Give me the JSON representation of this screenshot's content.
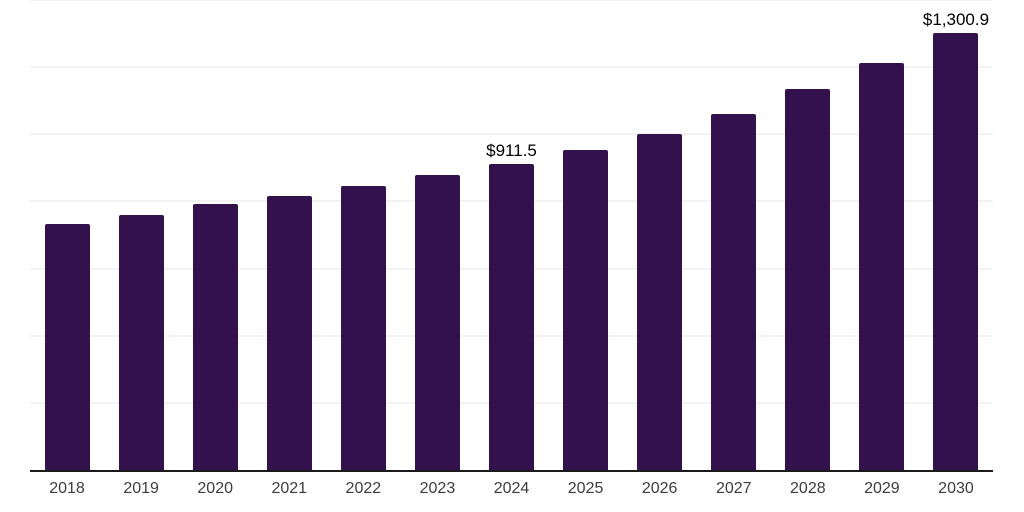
{
  "chart_data": {
    "type": "bar",
    "title": "",
    "xlabel": "",
    "ylabel": "",
    "categories": [
      "2018",
      "2019",
      "2020",
      "2021",
      "2022",
      "2023",
      "2024",
      "2025",
      "2026",
      "2027",
      "2028",
      "2029",
      "2030"
    ],
    "values": [
      732,
      760,
      791,
      816,
      846,
      879,
      911.5,
      953,
      1002,
      1060,
      1134,
      1213,
      1300.9
    ],
    "point_labels": [
      null,
      null,
      null,
      null,
      null,
      null,
      "$911.5",
      null,
      null,
      null,
      null,
      null,
      "$1,300.9"
    ],
    "ylim": [
      0,
      1400
    ],
    "gridline_step": 200,
    "grid": true,
    "legend_position": "none",
    "colors": {
      "bar": "#32114d",
      "gridline": "#f2f2f2",
      "axis_line": "#1a1a1a",
      "tick_label": "#3d3d3d",
      "value_label": "#000000",
      "background": "#ffffff"
    }
  }
}
